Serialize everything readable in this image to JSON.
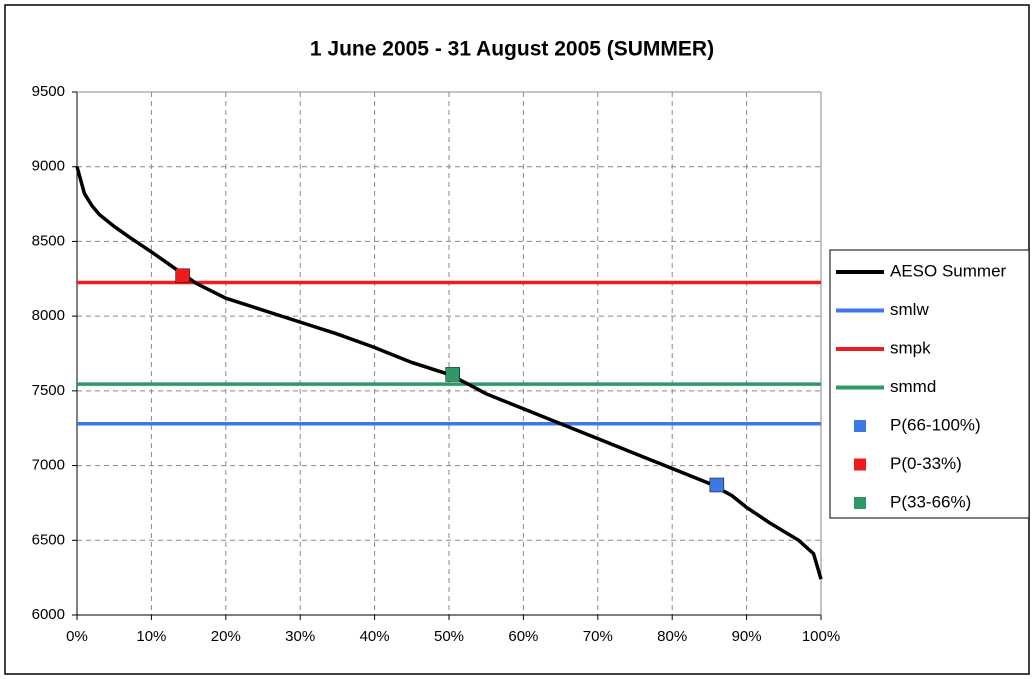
{
  "chart_data": {
    "type": "line",
    "title": "1 June 2005 - 31 August 2005 (SUMMER)",
    "xlim": [
      0,
      100
    ],
    "xticks": [
      {
        "value": 0,
        "label": "0%"
      },
      {
        "value": 10,
        "label": "10%"
      },
      {
        "value": 20,
        "label": "20%"
      },
      {
        "value": 30,
        "label": "30%"
      },
      {
        "value": 40,
        "label": "40%"
      },
      {
        "value": 50,
        "label": "50%"
      },
      {
        "value": 60,
        "label": "60%"
      },
      {
        "value": 70,
        "label": "70%"
      },
      {
        "value": 80,
        "label": "80%"
      },
      {
        "value": 90,
        "label": "90%"
      },
      {
        "value": 100,
        "label": "100%"
      }
    ],
    "ylim": [
      6000,
      9500
    ],
    "yticks": [
      6000,
      6500,
      7000,
      7500,
      8000,
      8500,
      9000,
      9500
    ],
    "grid": true,
    "legend": "right",
    "series": [
      {
        "name": "AESO Summer",
        "color": "#000000",
        "style": "line",
        "x": [
          0,
          1,
          2,
          3,
          5,
          7,
          10,
          12,
          14,
          16,
          20,
          25,
          30,
          35,
          40,
          45,
          50,
          52,
          55,
          60,
          65,
          70,
          75,
          80,
          85,
          88,
          90,
          93,
          95,
          97,
          99,
          100
        ],
        "values": [
          9000,
          8820,
          8740,
          8680,
          8600,
          8530,
          8430,
          8360,
          8290,
          8220,
          8120,
          8040,
          7960,
          7880,
          7790,
          7690,
          7610,
          7560,
          7480,
          7380,
          7280,
          7180,
          7080,
          6980,
          6880,
          6800,
          6720,
          6620,
          6560,
          6500,
          6410,
          6240
        ]
      },
      {
        "name": "smlw",
        "color": "#3c78e6",
        "style": "line",
        "x": [
          0,
          100
        ],
        "values": [
          7280,
          7280
        ]
      },
      {
        "name": "smpk",
        "color": "#ee1c1c",
        "style": "line",
        "x": [
          0,
          100
        ],
        "values": [
          8225,
          8225
        ]
      },
      {
        "name": "smmd",
        "color": "#2e9966",
        "style": "line",
        "x": [
          0,
          100
        ],
        "values": [
          7545,
          7545
        ]
      },
      {
        "name": "P(66-100%)",
        "color": "#3c78e6",
        "style": "marker",
        "x": [
          86
        ],
        "values": [
          6870
        ]
      },
      {
        "name": "P(0-33%)",
        "color": "#ee1c1c",
        "style": "marker",
        "x": [
          14.2
        ],
        "values": [
          8270
        ]
      },
      {
        "name": "P(33-66%)",
        "color": "#2e9966",
        "style": "marker",
        "x": [
          50.5
        ],
        "values": [
          7610
        ]
      }
    ]
  }
}
